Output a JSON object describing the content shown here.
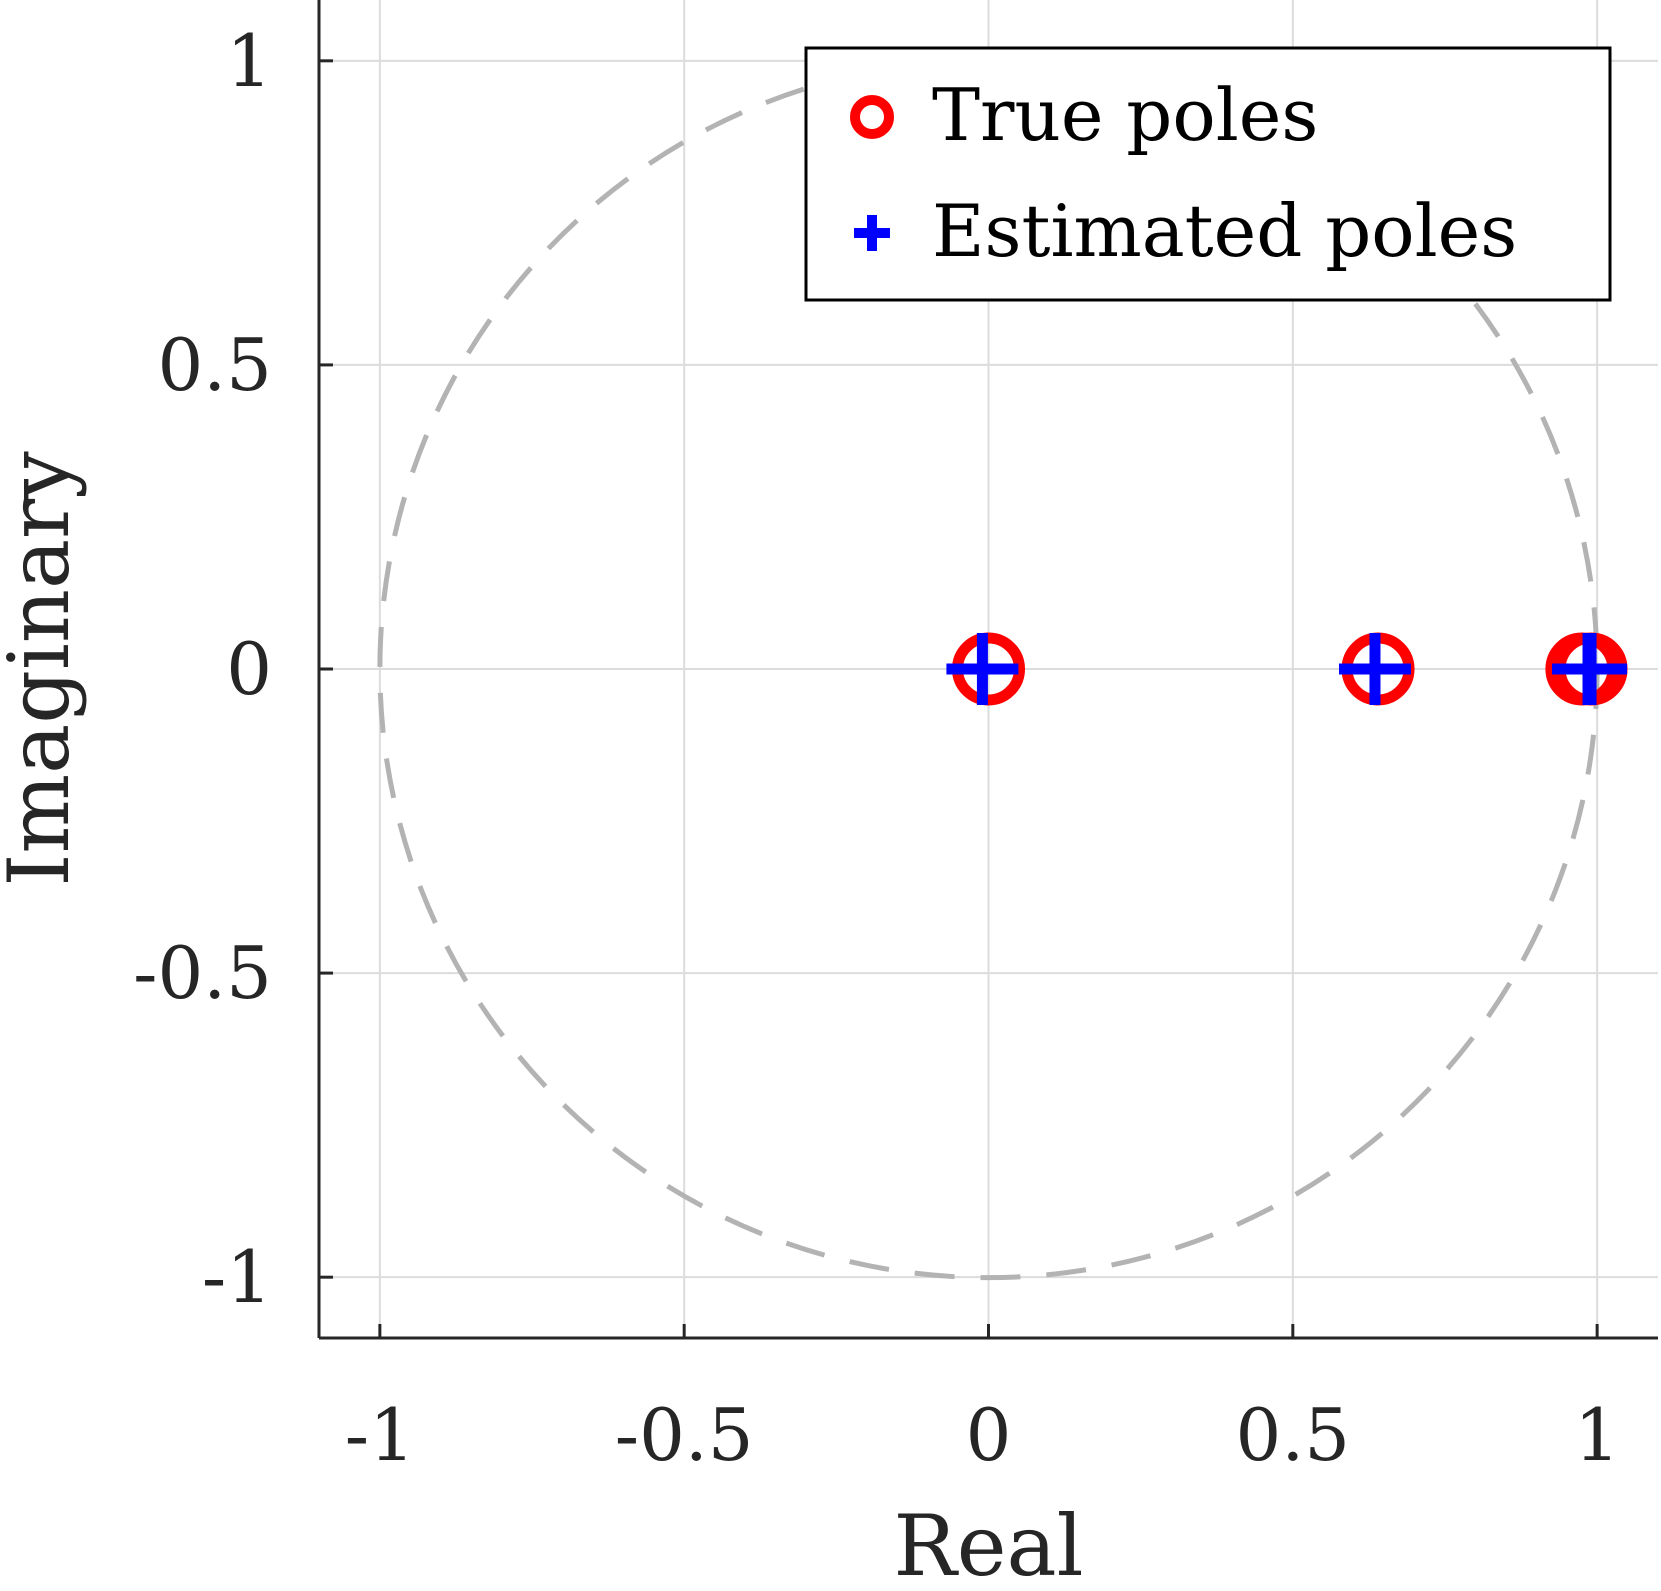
{
  "chart_data": {
    "type": "scatter",
    "title": "",
    "xlabel": "Real",
    "ylabel": "Imaginary",
    "xlim": [
      -1.1,
      1.1
    ],
    "ylim": [
      -1.1,
      1.1
    ],
    "xticks": [
      -1,
      -0.5,
      0,
      0.5,
      1
    ],
    "xtick_labels": [
      "-1",
      "-0.5",
      "0",
      "0.5",
      "1"
    ],
    "yticks": [
      -1,
      -0.5,
      0,
      0.5,
      1
    ],
    "ytick_labels": [
      "-1",
      "-0.5",
      "0",
      "0.5",
      "1"
    ],
    "grid": true,
    "legend_position": "top-right",
    "unit_circle": {
      "center": [
        0,
        0
      ],
      "radius": 1,
      "style": "dashed",
      "color": "#b3b3b3"
    },
    "series": [
      {
        "name": "True poles",
        "marker": "circle",
        "color": "#ff0000",
        "points": [
          [
            0,
            0
          ],
          [
            0.64,
            0
          ],
          [
            0.975,
            0
          ],
          [
            0.99,
            0
          ]
        ]
      },
      {
        "name": "Estimated poles",
        "marker": "plus",
        "color": "#0000ff",
        "points": [
          [
            -0.01,
            0
          ],
          [
            0.635,
            0
          ],
          [
            0.985,
            0
          ],
          [
            0.99,
            0
          ]
        ]
      }
    ]
  }
}
